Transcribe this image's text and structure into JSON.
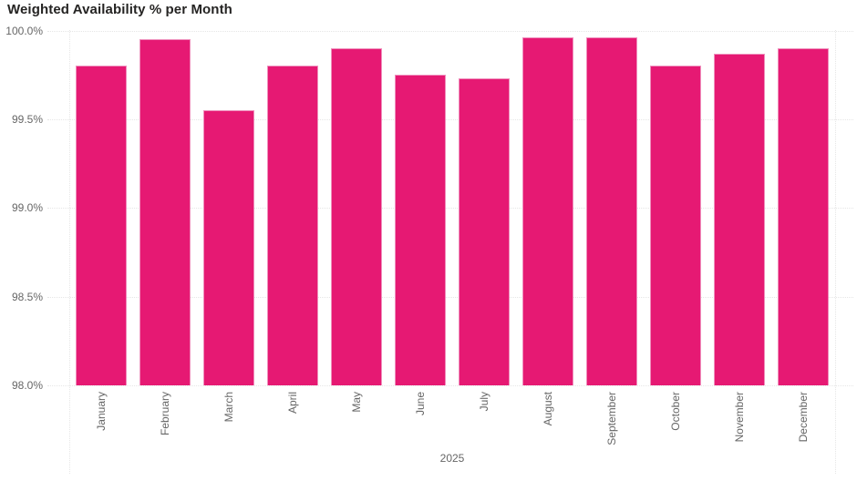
{
  "chart": {
    "colors": {
      "bar_fill": "#E61973",
      "bar_border": "#EF8FBC",
      "gridline": "#E6E6E6",
      "axis_label": "#666666",
      "title": "#252423",
      "background": "#FFFFFF"
    }
  },
  "chart_data": {
    "type": "bar",
    "title": "Weighted Availability % per Month",
    "categories": [
      "January",
      "February",
      "March",
      "April",
      "May",
      "June",
      "July",
      "August",
      "September",
      "October",
      "November",
      "December"
    ],
    "values": [
      99.8,
      99.95,
      99.55,
      99.8,
      99.9,
      99.75,
      99.73,
      99.96,
      99.96,
      99.8,
      99.87,
      99.9
    ],
    "unit": "%",
    "xlabel": "2025",
    "ylabel": "",
    "ylim": [
      98.0,
      100.0
    ],
    "yticks": [
      "100.0%",
      "99.5%",
      "99.0%",
      "98.5%",
      "98.0%"
    ],
    "ytick_values": [
      100.0,
      99.5,
      99.0,
      98.5,
      98.0
    ],
    "grid": "horizontal-dotted",
    "legend_position": "none",
    "x_label_rotation": -90
  }
}
